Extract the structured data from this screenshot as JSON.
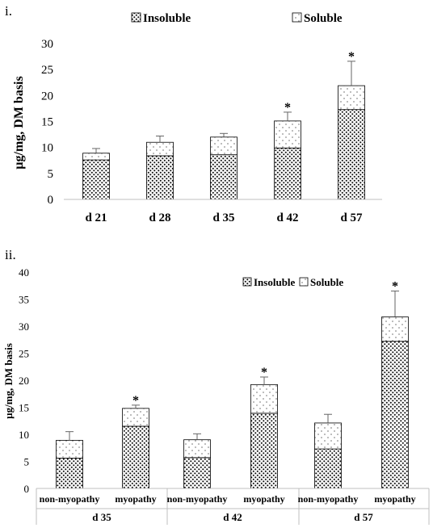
{
  "panels": [
    {
      "label": "i.",
      "legend": [
        "Insoluble",
        "Soluble"
      ],
      "chart_data": {
        "type": "bar",
        "stacked": true,
        "title": "",
        "xlabel": "",
        "ylabel": "µg/mg, DM basis",
        "ylim": [
          0,
          30
        ],
        "yticks": [
          "0",
          "5",
          "10",
          "15",
          "20",
          "25",
          "30"
        ],
        "categories": [
          "d 21",
          "d 28",
          "d 35",
          "d 42",
          "d 57"
        ],
        "series": [
          {
            "name": "Insoluble",
            "pattern": "dense-dots",
            "values": [
              7.6,
              8.4,
              8.6,
              9.9,
              17.3
            ]
          },
          {
            "name": "Soluble",
            "pattern": "sparse-dots",
            "values": [
              1.3,
              2.6,
              3.4,
              5.2,
              4.6
            ]
          }
        ],
        "error": [
          0.9,
          1.2,
          0.7,
          1.7,
          4.7
        ],
        "significance": [
          "",
          "",
          "",
          "*",
          "*"
        ],
        "grid": false,
        "legend_position": "top"
      }
    },
    {
      "label": "ii.",
      "legend": [
        "Insoluble",
        "Soluble"
      ],
      "chart_data": {
        "type": "bar",
        "stacked": true,
        "title": "",
        "xlabel": "",
        "ylabel": "µg/mg, DM basis",
        "ylim": [
          0,
          40
        ],
        "yticks": [
          "0",
          "5",
          "10",
          "15",
          "20",
          "25",
          "30",
          "35",
          "40"
        ],
        "categories": [
          "non-myopathy",
          "myopathy",
          "non-myopathy",
          "myopathy",
          "non-myopathy",
          "myopathy"
        ],
        "groups": [
          "d 35",
          "d 42",
          "d 57"
        ],
        "series": [
          {
            "name": "Insoluble",
            "pattern": "dense-dots",
            "values": [
              5.6,
              11.5,
              5.7,
              13.9,
              7.3,
              27.2
            ]
          },
          {
            "name": "Soluble",
            "pattern": "sparse-dots",
            "values": [
              3.3,
              3.3,
              3.3,
              5.3,
              4.8,
              4.5
            ]
          }
        ],
        "error": [
          1.6,
          0.6,
          1.1,
          1.4,
          1.6,
          4.8
        ],
        "significance": [
          "",
          "*",
          "",
          "*",
          "",
          "*"
        ],
        "grid": false,
        "legend_position": "top-right"
      }
    }
  ]
}
